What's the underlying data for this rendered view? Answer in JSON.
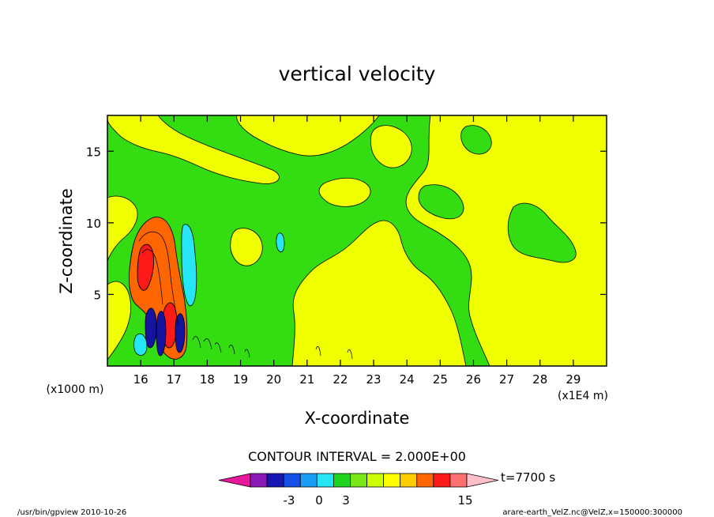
{
  "chart_data": {
    "type": "heatmap",
    "title": "vertical velocity",
    "xlabel": "X-coordinate",
    "ylabel": "Z-coordinate",
    "x_unit_note": "(x1E4 m)",
    "y_unit_note": "(x1000 m)",
    "x_ticks": [
      "16",
      "17",
      "18",
      "19",
      "20",
      "21",
      "22",
      "23",
      "24",
      "25",
      "26",
      "27",
      "28",
      "29"
    ],
    "y_ticks": [
      "5",
      "10",
      "15"
    ],
    "xlim": [
      15.0,
      30.0
    ],
    "ylim": [
      0.0,
      17.5
    ],
    "contour_interval_label": "CONTOUR INTERVAL = 2.000E+00",
    "time_label": "t=7700 s",
    "colorbar": {
      "labels": [
        "-3",
        "0",
        "3",
        "15"
      ],
      "colors": [
        "#e8189a",
        "#8a1ab8",
        "#1616b0",
        "#1450e6",
        "#1a9ef5",
        "#26e6f5",
        "#1ed41e",
        "#7ae617",
        "#ccff00",
        "#ffff00",
        "#ffcc00",
        "#ff6600",
        "#ff1a1a",
        "#ff7070",
        "#ffbfc8"
      ]
    },
    "colors": {
      "background_field": "#33dd11",
      "positive_weak": "#f0ff00",
      "positive_strong": "#ff6600",
      "negative": "#1414a0"
    }
  },
  "footer": {
    "left": "/usr/bin/gpview  2010-10-26",
    "right": "arare-earth_VelZ.nc@VelZ,x=150000:300000"
  }
}
